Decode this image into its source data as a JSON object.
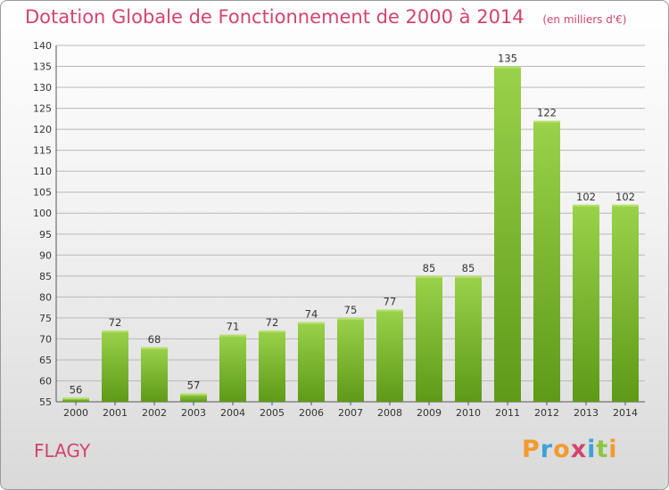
{
  "chart_data": {
    "type": "bar",
    "title": "Dotation Globale de Fonctionnement de 2000 à 2014",
    "subtitle": "(en milliers d'€)",
    "categories": [
      "2000",
      "2001",
      "2002",
      "2003",
      "2004",
      "2005",
      "2006",
      "2007",
      "2008",
      "2009",
      "2010",
      "2011",
      "2012",
      "2013",
      "2014"
    ],
    "values": [
      56,
      72,
      68,
      57,
      71,
      72,
      74,
      75,
      77,
      85,
      85,
      135,
      122,
      102,
      102
    ],
    "ylim": [
      55,
      140
    ],
    "yticks": [
      55,
      60,
      65,
      70,
      75,
      80,
      85,
      90,
      95,
      100,
      105,
      110,
      115,
      120,
      125,
      130,
      135,
      140
    ],
    "grid": true,
    "bar_color": "#7ab82e"
  },
  "labels": {
    "commune": "FLAGY",
    "logo": [
      "P",
      "r",
      "o",
      "x",
      "i",
      "t",
      "i"
    ],
    "logo_colors": [
      "#f29a2e",
      "#3aa3d8",
      "#f29a2e",
      "#d2446e",
      "#3aa3d8",
      "#8cc63f",
      "#f29a2e"
    ]
  }
}
